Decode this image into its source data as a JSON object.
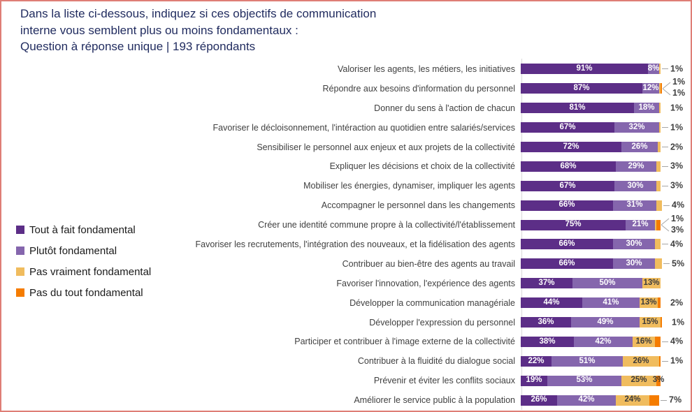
{
  "chart_data": {
    "type": "bar",
    "orientation": "horizontal",
    "stacked": true,
    "unit": "%",
    "xlim": [
      0,
      100
    ],
    "grid": false,
    "legend_position": "left",
    "title_lines": [
      "Dans la liste ci-dessous, indiquez si ces objectifs de communication",
      "interne vous semblent plus ou moins fondamentaux :"
    ],
    "subtitle": "Question à réponse unique | 193 répondants",
    "title_color": "#1F2A5E",
    "series": [
      {
        "name": "Tout à fait fondamental",
        "color": "#5C2E87"
      },
      {
        "name": "Plutôt fondamental",
        "color": "#8566AD"
      },
      {
        "name": "Pas vraiment fondamental",
        "color": "#F0BC5E"
      },
      {
        "name": "Pas du tout fondamental",
        "color": "#F57C00"
      }
    ],
    "rows": [
      {
        "label": "Valoriser les agents, les métiers, les initiatives",
        "values": [
          91,
          8,
          1,
          0
        ],
        "callouts": [
          {
            "text": "1%",
            "leader": "dash"
          }
        ]
      },
      {
        "label": "Répondre aux besoins d'information du personnel",
        "values": [
          87,
          12,
          1,
          1
        ],
        "callouts": [
          {
            "text": "1%"
          },
          {
            "text": "1%"
          }
        ]
      },
      {
        "label": "Donner du sens à l'action de chacun",
        "values": [
          81,
          18,
          1,
          0
        ],
        "callouts": [
          {
            "text": "1%",
            "leader": "none"
          }
        ]
      },
      {
        "label": "Favoriser le décloisonnement, l'intéraction au quotidien entre salariés/services",
        "values": [
          67,
          32,
          1,
          0
        ],
        "callouts": [
          {
            "text": "1%",
            "leader": "dash"
          }
        ]
      },
      {
        "label": "Sensibiliser le personnel aux enjeux et aux projets de la collectivité",
        "values": [
          72,
          26,
          2,
          0
        ],
        "callouts": [
          {
            "text": "2%",
            "leader": "dash"
          }
        ]
      },
      {
        "label": "Expliquer les décisions et choix de la collectivité",
        "values": [
          68,
          29,
          3,
          0
        ],
        "callouts": [
          {
            "text": "3%",
            "leader": "dash"
          }
        ]
      },
      {
        "label": "Mobiliser les énergies, dynamiser, impliquer les agents",
        "values": [
          67,
          30,
          3,
          0
        ],
        "callouts": [
          {
            "text": "3%",
            "leader": "dash"
          }
        ]
      },
      {
        "label": "Accompagner le personnel dans les changements",
        "values": [
          66,
          31,
          4,
          0
        ],
        "callouts": [
          {
            "text": "4%",
            "leader": "dash"
          }
        ]
      },
      {
        "label": "Créer une identité commune propre à la collectivité/l'établissement",
        "values": [
          75,
          21,
          1,
          3
        ],
        "callouts": [
          {
            "text": "1%"
          },
          {
            "text": "3%"
          }
        ]
      },
      {
        "label": "Favoriser les recrutements, l'intégration des nouveaux, et la fidélisation des agents",
        "values": [
          66,
          30,
          4,
          0
        ],
        "callouts": [
          {
            "text": "4%",
            "leader": "dash"
          }
        ]
      },
      {
        "label": "Contribuer au bien-être des agents au travail",
        "values": [
          66,
          30,
          5,
          0
        ],
        "callouts": [
          {
            "text": "5%",
            "leader": "dash"
          }
        ]
      },
      {
        "label": "Favoriser l'innovation, l'expérience des agents",
        "values": [
          37,
          50,
          13,
          0
        ],
        "callouts": []
      },
      {
        "label": "Développer la communication managériale",
        "values": [
          44,
          41,
          13,
          2
        ],
        "callouts": [
          {
            "text": "2%",
            "leader": "none"
          }
        ]
      },
      {
        "label": "Développer l'expression du personnel",
        "values": [
          36,
          49,
          15,
          1
        ],
        "callouts": [
          {
            "text": "1%",
            "leader": "none"
          }
        ]
      },
      {
        "label": "Participer et contribuer à l'image externe de la collectivité",
        "values": [
          38,
          42,
          16,
          4
        ],
        "callouts": [
          {
            "text": "4%",
            "leader": "dash"
          }
        ]
      },
      {
        "label": "Contribuer à la fluidité du dialogue social",
        "values": [
          22,
          51,
          26,
          1
        ],
        "callouts": [
          {
            "text": "1%",
            "leader": "dash"
          }
        ]
      },
      {
        "label": "Prévenir et éviter les conflits sociaux",
        "values": [
          19,
          53,
          25,
          3
        ],
        "callouts": [],
        "force_inside": [
          3
        ]
      },
      {
        "label": "Améliorer le service public à la population",
        "values": [
          26,
          42,
          24,
          7
        ],
        "callouts": [
          {
            "text": "7%",
            "leader": "dash"
          }
        ]
      }
    ]
  },
  "frame": {
    "border_color": "#DF7E76"
  }
}
